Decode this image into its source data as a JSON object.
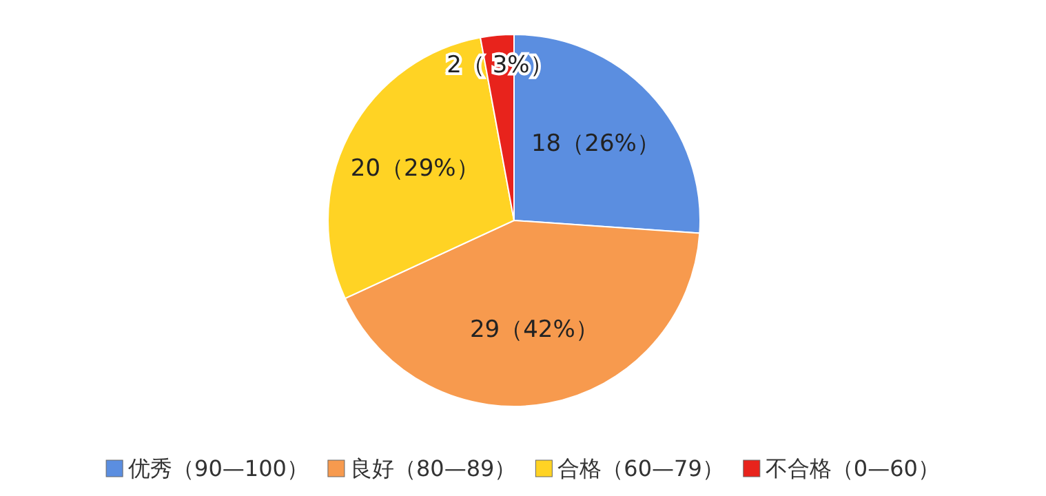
{
  "chart_data": {
    "type": "pie",
    "categories": [
      "优秀（90—100）",
      "良好（80—89）",
      "合格（60—79）",
      "不合格（0—60）"
    ],
    "values": [
      18,
      29,
      20,
      2
    ],
    "colors": [
      "#5b8ee0",
      "#f79a4e",
      "#ffd324",
      "#e8231c"
    ],
    "value_labels": [
      "18（26%）",
      "29（42%）",
      "20（29%）",
      "2（ 3%）"
    ],
    "legend": "bottom"
  }
}
